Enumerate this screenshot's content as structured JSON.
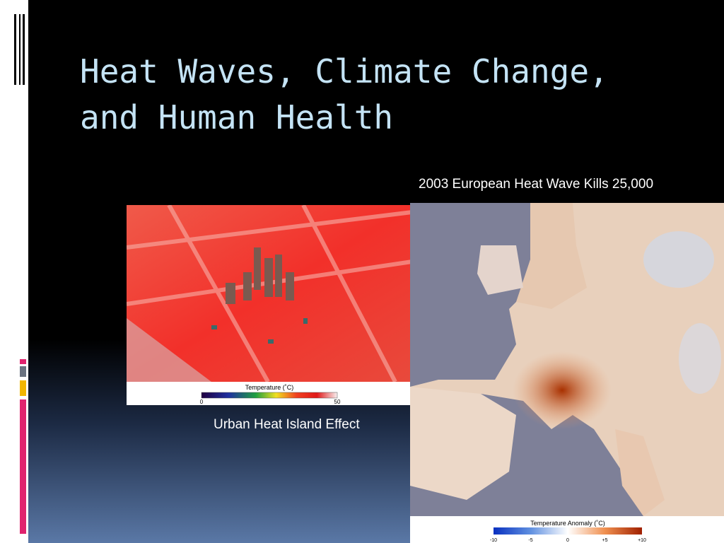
{
  "slide": {
    "title": [
      "Heat Waves, Climate Change,",
      "and Human Health"
    ],
    "images": [
      {
        "caption": "Urban Heat Island Effect",
        "legend": {
          "title": "Temperature (˚C)",
          "ticks": [
            "0",
            "50"
          ]
        }
      },
      {
        "caption": "2003 European Heat Wave Kills 25,000",
        "legend": {
          "title": "Temperature Anomaly (˚C)",
          "ticks": [
            "-10",
            "-5",
            "0",
            "+5",
            "+10"
          ]
        }
      }
    ]
  }
}
